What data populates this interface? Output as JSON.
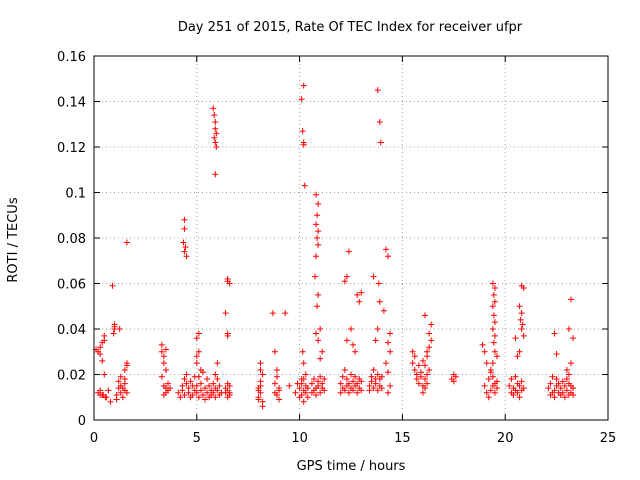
{
  "chart_data": {
    "type": "scatter",
    "title": "Day 251 of 2015, Rate Of TEC Index for receiver ufpr",
    "xlabel": "GPS time / hours",
    "ylabel": "ROTI / TECUs",
    "xlim": [
      0,
      25
    ],
    "ylim": [
      0,
      0.16
    ],
    "xticks": [
      "0",
      "5",
      "10",
      "15",
      "20",
      "25"
    ],
    "yticks": [
      "0",
      "0.02",
      "0.04",
      "0.06",
      "0.08",
      "0.1",
      "0.12",
      "0.14",
      "0.16"
    ],
    "grid": true,
    "legend": "none",
    "marker": "+",
    "color": "#ff0000",
    "series": [
      {
        "x": [
          0.1,
          0.2,
          0.3,
          0.3,
          0.4,
          0.4,
          0.5,
          0.5,
          0.6,
          0.3,
          0.4,
          0.5,
          0.45,
          0.2,
          0.3,
          0.4,
          0.55,
          0.7,
          0.8,
          0.9,
          1.0,
          1.0,
          1.1,
          1.2,
          1.3,
          1.3,
          1.4,
          1.5,
          1.5,
          1.6,
          1.6,
          1.4,
          1.3,
          1.5,
          1.2,
          1.5,
          1.6,
          1.1,
          1.0,
          0.95,
          1.25,
          1.6,
          3.3,
          3.3,
          3.4,
          3.4,
          3.5,
          3.5,
          3.6,
          3.4,
          3.3,
          3.5,
          3.4,
          3.6,
          3.5,
          3.7,
          4.1,
          4.2,
          4.3,
          4.3,
          4.4,
          4.4,
          4.5,
          4.5,
          4.6,
          4.6,
          4.7,
          4.7,
          4.8,
          4.8,
          4.9,
          4.9,
          4.4,
          4.4,
          4.35,
          4.45,
          4.4,
          4.5,
          5.0,
          5.0,
          5.1,
          5.1,
          5.2,
          5.2,
          5.3,
          5.3,
          5.4,
          5.4,
          5.5,
          5.5,
          5.6,
          5.6,
          5.7,
          5.7,
          5.8,
          5.8,
          5.9,
          5.9,
          6.0,
          6.0,
          6.1,
          6.1,
          6.2,
          5.0,
          5.1,
          5.0,
          5.1,
          5.0,
          5.2,
          5.8,
          5.85,
          5.9,
          5.9,
          5.95,
          5.85,
          5.9,
          5.95,
          5.9,
          6.0,
          5.9,
          6.4,
          6.4,
          6.5,
          6.5,
          6.5,
          6.6,
          6.6,
          6.5,
          6.5,
          6.4,
          6.5,
          6.6,
          6.5,
          6.6,
          8.0,
          8.0,
          8.1,
          8.1,
          8.2,
          8.2,
          8.1,
          8.0,
          8.2,
          8.1,
          8.0,
          8.1,
          8.8,
          8.8,
          8.9,
          8.9,
          9.0,
          9.0,
          8.8,
          8.9,
          8.7,
          9.0,
          9.3,
          9.5,
          9.8,
          9.9,
          10.0,
          10.0,
          10.1,
          10.1,
          10.2,
          10.2,
          10.3,
          10.3,
          10.4,
          10.4,
          10.2,
          10.1,
          10.15,
          10.2,
          10.2,
          10.25,
          10.15,
          10.2,
          10.3,
          10.2,
          10.1,
          10.6,
          10.6,
          10.7,
          10.7,
          10.8,
          10.8,
          10.9,
          10.9,
          11.0,
          11.0,
          11.1,
          11.1,
          11.2,
          11.2,
          10.8,
          10.9,
          10.85,
          10.8,
          10.9,
          10.85,
          10.9,
          10.8,
          10.75,
          10.9,
          10.85,
          11.0,
          10.8,
          10.9,
          11.1,
          11.0,
          12.0,
          12.0,
          12.1,
          12.1,
          12.2,
          12.2,
          12.3,
          12.3,
          12.4,
          12.4,
          12.5,
          12.5,
          12.6,
          12.6,
          12.7,
          12.7,
          12.8,
          12.8,
          12.9,
          12.9,
          13.0,
          13.0,
          12.3,
          12.4,
          12.2,
          12.3,
          12.8,
          12.9,
          13.0,
          12.5,
          12.6,
          12.7,
          13.4,
          13.4,
          13.5,
          13.5,
          13.6,
          13.6,
          13.7,
          13.7,
          13.8,
          13.8,
          13.9,
          13.9,
          14.0,
          14.0,
          13.8,
          13.9,
          13.95,
          13.85,
          13.9,
          13.8,
          13.7,
          13.6,
          14.1,
          14.2,
          14.3,
          14.4,
          14.3,
          14.4,
          14.3,
          14.4,
          14.2,
          14.3,
          15.5,
          15.5,
          15.6,
          15.6,
          15.7,
          15.7,
          15.8,
          15.8,
          15.9,
          15.9,
          16.0,
          16.0,
          16.1,
          16.1,
          16.2,
          16.2,
          16.3,
          16.3,
          16.4,
          16.4,
          16.1,
          16.2,
          16.0,
          16.2,
          16.1,
          16.3,
          17.4,
          17.5,
          17.5,
          17.6,
          18.9,
          19.0,
          19.0,
          19.1,
          19.1,
          19.2,
          19.2,
          19.3,
          19.3,
          19.4,
          19.4,
          19.5,
          19.5,
          19.6,
          19.6,
          19.4,
          19.5,
          19.45,
          19.5,
          19.4,
          19.45,
          19.5,
          19.4,
          19.5,
          19.45,
          19.5,
          19.6,
          19.3,
          19.4,
          20.2,
          20.3,
          20.3,
          20.4,
          20.4,
          20.5,
          20.5,
          20.6,
          20.6,
          20.7,
          20.7,
          20.8,
          20.8,
          20.9,
          20.8,
          20.9,
          20.7,
          20.8,
          20.75,
          20.85,
          20.8,
          20.9,
          20.7,
          20.5,
          20.6,
          22.1,
          22.2,
          22.2,
          22.3,
          22.3,
          22.4,
          22.4,
          22.5,
          22.5,
          22.6,
          22.6,
          22.7,
          22.7,
          22.8,
          22.8,
          22.9,
          22.9,
          23.0,
          23.0,
          23.1,
          23.1,
          23.2,
          23.2,
          23.3,
          23.3,
          22.4,
          22.5,
          23.2,
          23.1,
          23.3,
          23.2,
          23.0,
          23.1
        ],
        "y": [
          0.031,
          0.012,
          0.011,
          0.029,
          0.034,
          0.026,
          0.037,
          0.035,
          0.01,
          0.013,
          0.011,
          0.02,
          0.011,
          0.03,
          0.032,
          0.011,
          0.01,
          0.013,
          0.008,
          0.059,
          0.042,
          0.04,
          0.011,
          0.017,
          0.019,
          0.012,
          0.014,
          0.018,
          0.022,
          0.025,
          0.024,
          0.01,
          0.015,
          0.016,
          0.014,
          0.013,
          0.012,
          0.009,
          0.041,
          0.038,
          0.04,
          0.078,
          0.03,
          0.033,
          0.025,
          0.028,
          0.022,
          0.014,
          0.013,
          0.015,
          0.019,
          0.012,
          0.011,
          0.016,
          0.031,
          0.014,
          0.012,
          0.01,
          0.015,
          0.013,
          0.018,
          0.011,
          0.02,
          0.016,
          0.012,
          0.014,
          0.017,
          0.01,
          0.015,
          0.011,
          0.013,
          0.019,
          0.088,
          0.084,
          0.078,
          0.076,
          0.074,
          0.072,
          0.012,
          0.015,
          0.01,
          0.019,
          0.013,
          0.016,
          0.011,
          0.021,
          0.014,
          0.009,
          0.012,
          0.018,
          0.01,
          0.015,
          0.013,
          0.011,
          0.016,
          0.012,
          0.014,
          0.01,
          0.018,
          0.013,
          0.011,
          0.015,
          0.012,
          0.036,
          0.038,
          0.028,
          0.03,
          0.025,
          0.022,
          0.137,
          0.134,
          0.131,
          0.128,
          0.126,
          0.124,
          0.122,
          0.12,
          0.108,
          0.025,
          0.02,
          0.012,
          0.014,
          0.01,
          0.016,
          0.013,
          0.011,
          0.015,
          0.037,
          0.038,
          0.047,
          0.062,
          0.06,
          0.061,
          0.012,
          0.014,
          0.01,
          0.017,
          0.012,
          0.02,
          0.008,
          0.025,
          0.013,
          0.006,
          0.015,
          0.009,
          0.022,
          0.016,
          0.012,
          0.019,
          0.011,
          0.014,
          0.009,
          0.03,
          0.022,
          0.047,
          0.013,
          0.047,
          0.015,
          0.012,
          0.016,
          0.01,
          0.014,
          0.011,
          0.018,
          0.013,
          0.008,
          0.015,
          0.012,
          0.01,
          0.014,
          0.147,
          0.141,
          0.127,
          0.122,
          0.121,
          0.103,
          0.03,
          0.025,
          0.02,
          0.018,
          0.016,
          0.012,
          0.016,
          0.013,
          0.018,
          0.014,
          0.011,
          0.017,
          0.015,
          0.019,
          0.012,
          0.016,
          0.014,
          0.013,
          0.018,
          0.099,
          0.095,
          0.09,
          0.086,
          0.083,
          0.08,
          0.077,
          0.072,
          0.063,
          0.055,
          0.05,
          0.04,
          0.038,
          0.035,
          0.03,
          0.027,
          0.012,
          0.016,
          0.014,
          0.019,
          0.013,
          0.022,
          0.015,
          0.018,
          0.012,
          0.016,
          0.02,
          0.014,
          0.017,
          0.013,
          0.015,
          0.019,
          0.012,
          0.016,
          0.014,
          0.018,
          0.013,
          0.017,
          0.063,
          0.074,
          0.061,
          0.035,
          0.055,
          0.052,
          0.056,
          0.04,
          0.033,
          0.03,
          0.015,
          0.013,
          0.019,
          0.017,
          0.022,
          0.014,
          0.018,
          0.016,
          0.013,
          0.02,
          0.015,
          0.018,
          0.014,
          0.019,
          0.145,
          0.131,
          0.122,
          0.06,
          0.052,
          0.04,
          0.035,
          0.063,
          0.048,
          0.075,
          0.072,
          0.015,
          0.012,
          0.038,
          0.034,
          0.03,
          0.025,
          0.021,
          0.03,
          0.025,
          0.028,
          0.022,
          0.02,
          0.018,
          0.016,
          0.024,
          0.019,
          0.021,
          0.012,
          0.015,
          0.018,
          0.014,
          0.02,
          0.016,
          0.032,
          0.038,
          0.042,
          0.035,
          0.046,
          0.03,
          0.026,
          0.028,
          0.024,
          0.022,
          0.018,
          0.02,
          0.017,
          0.019,
          0.033,
          0.015,
          0.03,
          0.012,
          0.025,
          0.01,
          0.018,
          0.013,
          0.021,
          0.015,
          0.019,
          0.012,
          0.016,
          0.014,
          0.017,
          0.06,
          0.058,
          0.055,
          0.052,
          0.05,
          0.046,
          0.043,
          0.04,
          0.037,
          0.034,
          0.03,
          0.028,
          0.022,
          0.025,
          0.015,
          0.012,
          0.018,
          0.011,
          0.014,
          0.019,
          0.013,
          0.016,
          0.012,
          0.015,
          0.01,
          0.017,
          0.013,
          0.014,
          0.059,
          0.058,
          0.05,
          0.047,
          0.044,
          0.042,
          0.04,
          0.037,
          0.03,
          0.036,
          0.028,
          0.014,
          0.011,
          0.016,
          0.012,
          0.019,
          0.013,
          0.01,
          0.015,
          0.018,
          0.012,
          0.016,
          0.011,
          0.014,
          0.017,
          0.012,
          0.015,
          0.01,
          0.013,
          0.018,
          0.011,
          0.016,
          0.012,
          0.015,
          0.011,
          0.014,
          0.038,
          0.029,
          0.053,
          0.04,
          0.036,
          0.025,
          0.022,
          0.02
        ]
      }
    ]
  }
}
